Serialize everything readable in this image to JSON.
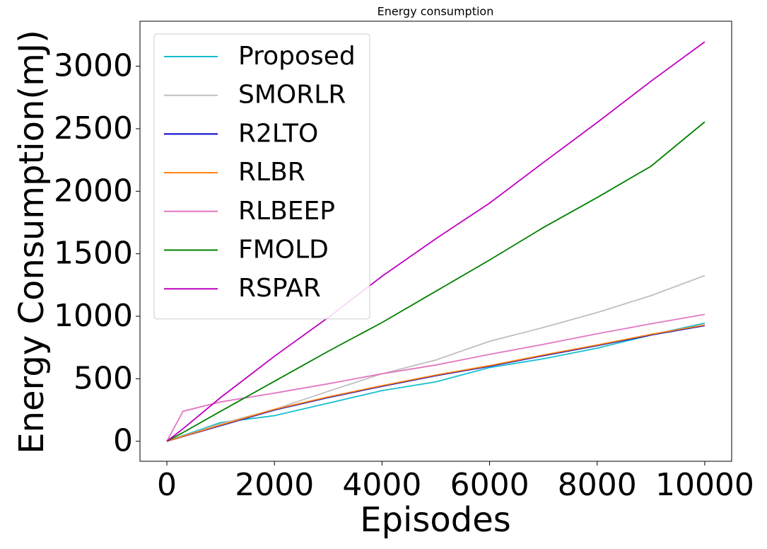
{
  "chart_data": {
    "type": "line",
    "title": "Energy consumption",
    "x_label": "Episodes",
    "y_label": "Energy Consumption(mJ)",
    "x": [
      0,
      300,
      1000,
      2000,
      3000,
      4000,
      5000,
      6000,
      7000,
      8000,
      9000,
      10000
    ],
    "series": [
      {
        "name": "Proposed",
        "color": "#17becf",
        "values": [
          0,
          45,
          150,
          205,
          305,
          405,
          475,
          590,
          660,
          745,
          850,
          945
        ]
      },
      {
        "name": "SMORLR",
        "color": "#bfbfbf",
        "values": [
          0,
          40,
          140,
          255,
          400,
          540,
          650,
          800,
          910,
          1030,
          1165,
          1325
        ]
      },
      {
        "name": "R2LTO",
        "color": "#0000cc",
        "values": [
          0,
          38,
          125,
          250,
          350,
          440,
          525,
          600,
          685,
          765,
          850,
          925
        ]
      },
      {
        "name": "RLBR",
        "color": "#ff7f0e",
        "values": [
          0,
          40,
          130,
          255,
          355,
          445,
          530,
          605,
          690,
          770,
          855,
          930
        ]
      },
      {
        "name": "RLBEEP",
        "color": "#e377c2",
        "values": [
          0,
          240,
          315,
          385,
          460,
          540,
          610,
          695,
          775,
          860,
          940,
          1015
        ]
      },
      {
        "name": "FMOLD",
        "color": "#008000",
        "values": [
          0,
          70,
          240,
          480,
          720,
          950,
          1200,
          1450,
          1710,
          1950,
          2200,
          2555
        ]
      },
      {
        "name": "RSPAR",
        "color": "#bf00bf",
        "values": [
          0,
          100,
          350,
          680,
          990,
          1320,
          1620,
          1905,
          2230,
          2550,
          2880,
          3195
        ]
      }
    ],
    "xlim": [
      -500,
      10500
    ],
    "xticks": [
      0,
      2000,
      4000,
      6000,
      8000,
      10000
    ],
    "ylim": [
      -160,
      3360
    ],
    "yticks": [
      0,
      500,
      1000,
      1500,
      2000,
      2500,
      3000
    ],
    "legend": "upper left"
  }
}
